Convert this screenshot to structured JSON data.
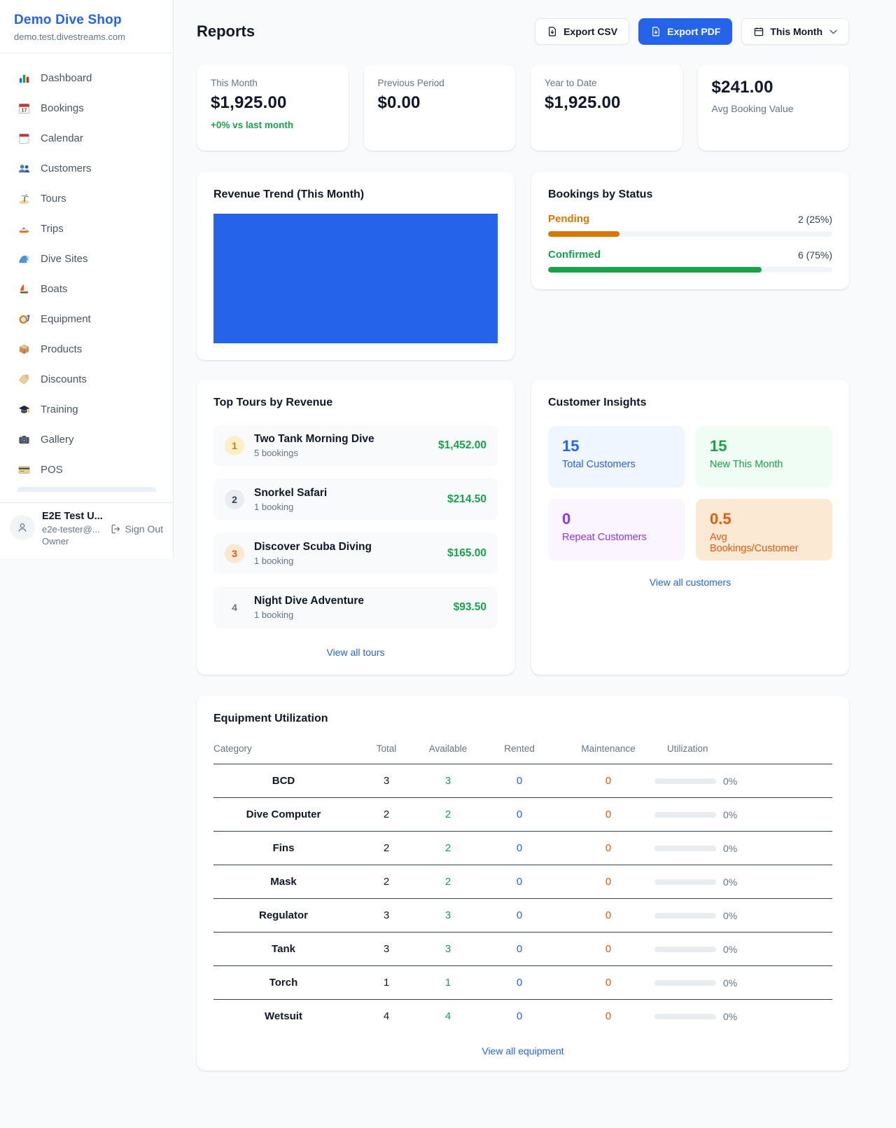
{
  "colors": {
    "brand_blue": "#2563eb",
    "success_green": "#16a34a",
    "pending_orange": "#d97706",
    "deep_orange": "#ea580c",
    "purple": "#9333ea",
    "page_bg": "#f8fafc"
  },
  "sidebar": {
    "shop_name": "Demo Dive Shop",
    "shop_domain": "demo.test.divestreams.com",
    "items": [
      {
        "label": "Dashboard",
        "icon": "bar-chart"
      },
      {
        "label": "Bookings",
        "icon": "calendar-date"
      },
      {
        "label": "Calendar",
        "icon": "tear-off-calendar"
      },
      {
        "label": "Customers",
        "icon": "people"
      },
      {
        "label": "Tours",
        "icon": "island"
      },
      {
        "label": "Trips",
        "icon": "speedboat"
      },
      {
        "label": "Dive Sites",
        "icon": "wave"
      },
      {
        "label": "Boats",
        "icon": "sailboat"
      },
      {
        "label": "Equipment",
        "icon": "diving-mask"
      },
      {
        "label": "Products",
        "icon": "package"
      },
      {
        "label": "Discounts",
        "icon": "tag"
      },
      {
        "label": "Training",
        "icon": "graduation-cap"
      },
      {
        "label": "Gallery",
        "icon": "camera"
      },
      {
        "label": "POS",
        "icon": "credit-card"
      }
    ],
    "user": {
      "name": "E2E Test U...",
      "email": "e2e-tester@...",
      "role": "Owner",
      "sign_out": "Sign Out"
    }
  },
  "header": {
    "title": "Reports",
    "export_csv": "Export CSV",
    "export_pdf": "Export PDF",
    "period": "This Month"
  },
  "stats": [
    {
      "label": "This Month",
      "value": "$1,925.00",
      "delta": "+0% vs last month"
    },
    {
      "label": "Previous Period",
      "value": "$0.00"
    },
    {
      "label": "Year to Date",
      "value": "$1,925.00"
    },
    {
      "label": "Avg Booking Value",
      "value": "$241.00"
    }
  ],
  "revenue_trend": {
    "title": "Revenue Trend (This Month)"
  },
  "chart_data": [
    {
      "type": "bar",
      "title": "Revenue Trend (This Month)",
      "categories": [
        "This Month"
      ],
      "values": [
        1925
      ],
      "bar_color": "#2563eb",
      "notes": "single bar fills the entire plot area; no axes, ticks or labels visible"
    },
    {
      "type": "bar",
      "title": "Bookings by Status",
      "categories": [
        "Pending",
        "Confirmed"
      ],
      "values": [
        2,
        6
      ],
      "percents": [
        25,
        75
      ],
      "bar_colors": [
        "#d97706",
        "#16a34a"
      ]
    }
  ],
  "bookings_status": {
    "title": "Bookings by Status",
    "rows": [
      {
        "label": "Pending",
        "value": "2 (25%)",
        "percent": 25
      },
      {
        "label": "Confirmed",
        "value": "6 (75%)",
        "percent": 75
      }
    ]
  },
  "top_tours": {
    "title": "Top Tours by Revenue",
    "items": [
      {
        "rank": "1",
        "name": "Two Tank Morning Dive",
        "bookings": "5 bookings",
        "revenue": "$1,452.00"
      },
      {
        "rank": "2",
        "name": "Snorkel Safari",
        "bookings": "1 booking",
        "revenue": "$214.50"
      },
      {
        "rank": "3",
        "name": "Discover Scuba Diving",
        "bookings": "1 booking",
        "revenue": "$165.00"
      },
      {
        "rank": "4",
        "name": "Night Dive Adventure",
        "bookings": "1 booking",
        "revenue": "$93.50"
      }
    ],
    "view_all": "View all tours"
  },
  "customer_insights": {
    "title": "Customer Insights",
    "tiles": [
      {
        "value": "15",
        "label": "Total Customers"
      },
      {
        "value": "15",
        "label": "New This Month"
      },
      {
        "value": "0",
        "label": "Repeat Customers"
      },
      {
        "value": "0.5",
        "label": "Avg Bookings/Customer"
      }
    ],
    "view_all": "View all customers"
  },
  "equipment": {
    "title": "Equipment Utilization",
    "headers": [
      "Category",
      "Total",
      "Available",
      "Rented",
      "Maintenance",
      "Utilization"
    ],
    "rows": [
      {
        "category": "BCD",
        "total": "3",
        "available": "3",
        "rented": "0",
        "maintenance": "0",
        "utilization": "0%",
        "percent": 0
      },
      {
        "category": "Dive Computer",
        "total": "2",
        "available": "2",
        "rented": "0",
        "maintenance": "0",
        "utilization": "0%",
        "percent": 0
      },
      {
        "category": "Fins",
        "total": "2",
        "available": "2",
        "rented": "0",
        "maintenance": "0",
        "utilization": "0%",
        "percent": 0
      },
      {
        "category": "Mask",
        "total": "2",
        "available": "2",
        "rented": "0",
        "maintenance": "0",
        "utilization": "0%",
        "percent": 0
      },
      {
        "category": "Regulator",
        "total": "3",
        "available": "3",
        "rented": "0",
        "maintenance": "0",
        "utilization": "0%",
        "percent": 0
      },
      {
        "category": "Tank",
        "total": "3",
        "available": "3",
        "rented": "0",
        "maintenance": "0",
        "utilization": "0%",
        "percent": 0
      },
      {
        "category": "Torch",
        "total": "1",
        "available": "1",
        "rented": "0",
        "maintenance": "0",
        "utilization": "0%",
        "percent": 0
      },
      {
        "category": "Wetsuit",
        "total": "4",
        "available": "4",
        "rented": "0",
        "maintenance": "0",
        "utilization": "0%",
        "percent": 0
      }
    ],
    "view_all": "View all equipment"
  }
}
